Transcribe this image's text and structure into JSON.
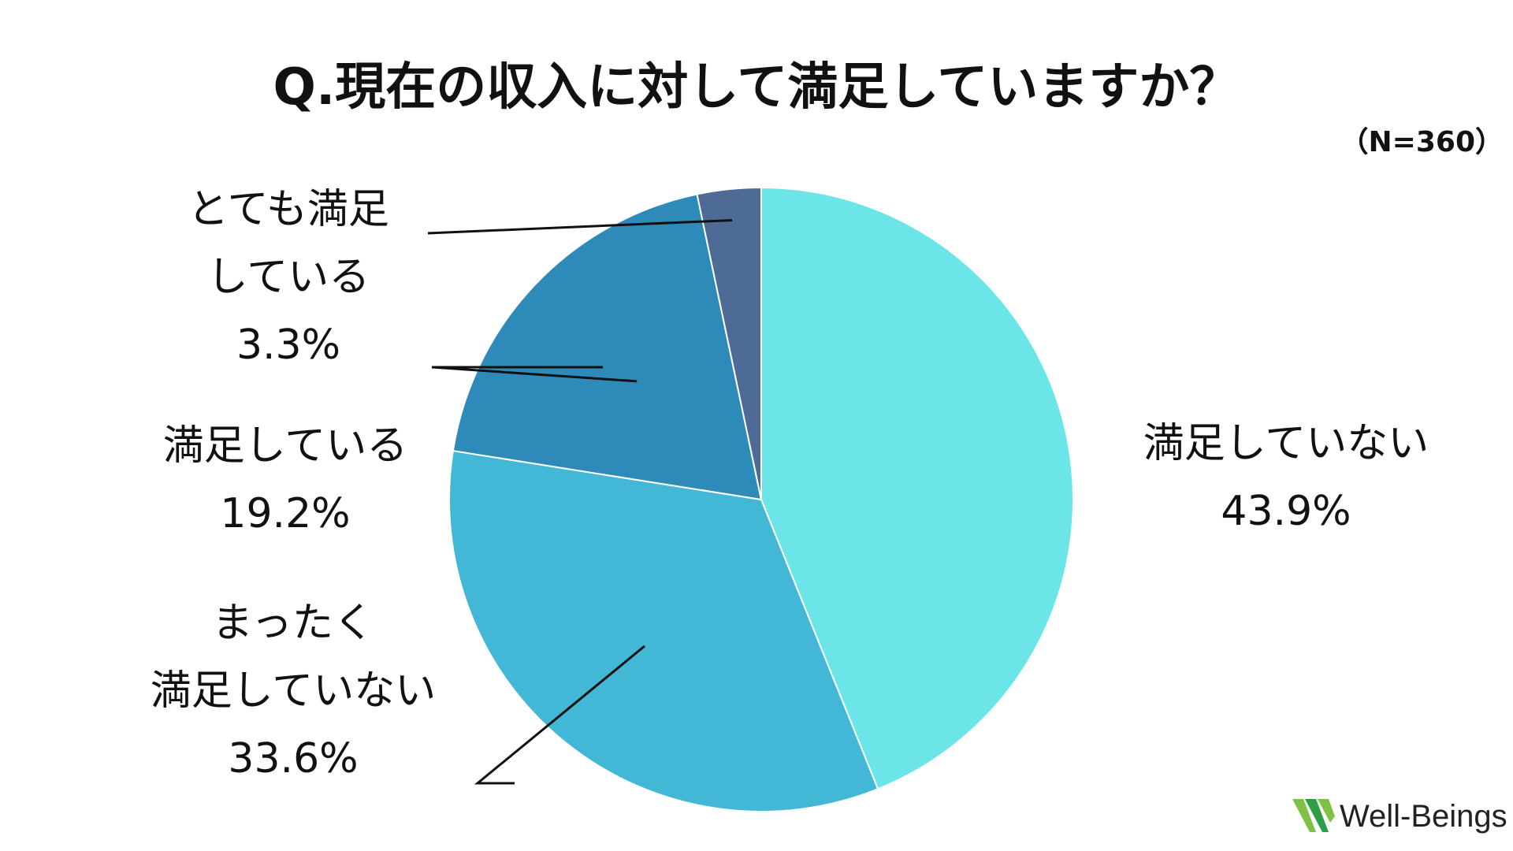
{
  "chart_data": {
    "type": "pie",
    "title": "Q.現在の収入に対して満足していますか？",
    "subtitle": "（N=360）",
    "unit": "%",
    "start_angle_deg": 0,
    "direction": "clockwise",
    "slices": [
      {
        "label_lines": [
          "満足していない"
        ],
        "value": 43.9,
        "value_label": "43.9%",
        "color": "#6ce5e8"
      },
      {
        "label_lines": [
          "まったく",
          "満足していない"
        ],
        "value": 33.6,
        "value_label": "33.6%",
        "color": "#42b7d6"
      },
      {
        "label_lines": [
          "満足している"
        ],
        "value": 19.2,
        "value_label": "19.2%",
        "color": "#2e8bb9"
      },
      {
        "label_lines": [
          "とても満足",
          "している"
        ],
        "value": 3.3,
        "value_label": "3.3%",
        "color": "#4e6b96"
      }
    ],
    "leader_color": "#111111"
  },
  "brand": {
    "name": "Well-Beings",
    "logo_colors": [
      "#7dc242",
      "#2e9e45"
    ]
  }
}
